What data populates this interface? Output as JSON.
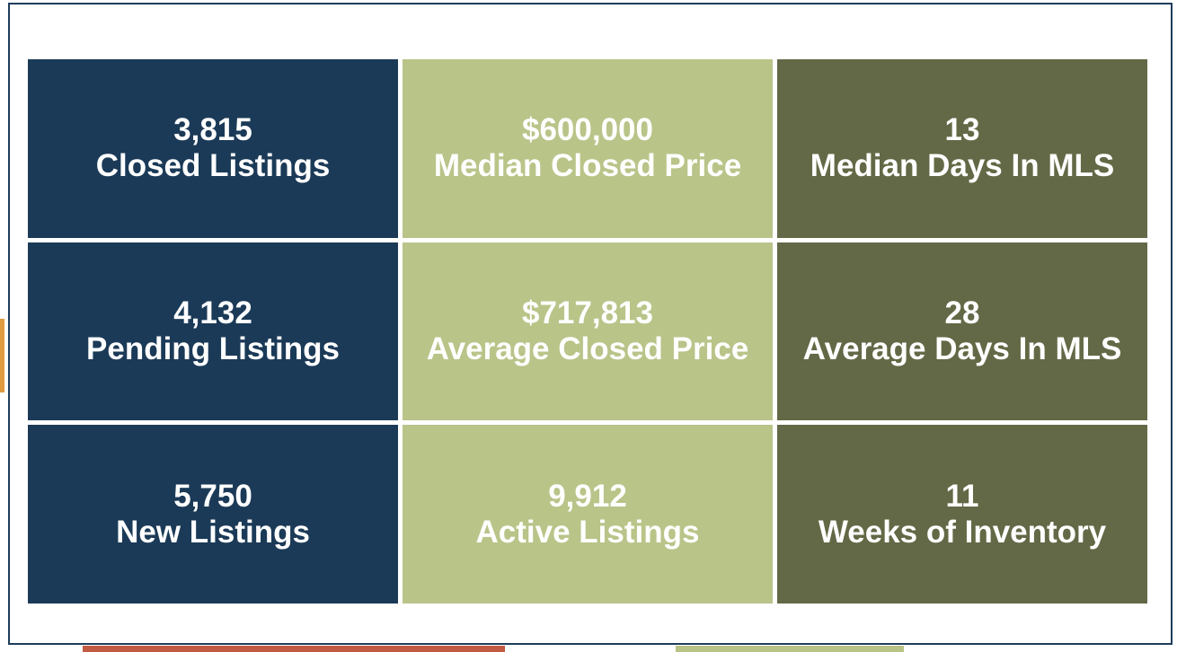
{
  "theme": {
    "navy": "#1b3a57",
    "light_green": "#b9c489",
    "olive": "#636946",
    "frame_border": "#1e3d5b",
    "orange_accent": "#e09b3e",
    "red_accent": "#c35a43",
    "green_accent": "#b7c387",
    "text": "#ffffff",
    "page_background": "#ffffff"
  },
  "metrics": {
    "tiles": [
      {
        "value": "3,815",
        "label": "Closed Listings"
      },
      {
        "value": "$600,000",
        "label": "Median Closed Price"
      },
      {
        "value": "13",
        "label": "Median Days In MLS"
      },
      {
        "value": "4,132",
        "label": "Pending Listings"
      },
      {
        "value": "$717,813",
        "label": "Average Closed Price"
      },
      {
        "value": "28",
        "label": "Average Days In MLS"
      },
      {
        "value": "5,750",
        "label": "New Listings"
      },
      {
        "value": "9,912",
        "label": "Active Listings"
      },
      {
        "value": "11",
        "label": "Weeks of Inventory"
      }
    ]
  },
  "chart_data": {
    "type": "table",
    "columns": [
      "metric",
      "value"
    ],
    "rows": [
      {
        "metric": "Closed Listings",
        "value": 3815,
        "display": "3,815"
      },
      {
        "metric": "Median Closed Price",
        "value": 600000,
        "display": "$600,000"
      },
      {
        "metric": "Median Days In MLS",
        "value": 13,
        "display": "13"
      },
      {
        "metric": "Pending Listings",
        "value": 4132,
        "display": "4,132"
      },
      {
        "metric": "Average Closed Price",
        "value": 717813,
        "display": "$717,813"
      },
      {
        "metric": "Average Days In MLS",
        "value": 28,
        "display": "28"
      },
      {
        "metric": "New Listings",
        "value": 5750,
        "display": "5,750"
      },
      {
        "metric": "Active Listings",
        "value": 9912,
        "display": "9,912"
      },
      {
        "metric": "Weeks of Inventory",
        "value": 11,
        "display": "11"
      }
    ],
    "layout": {
      "grid": "3x3",
      "column_colors": [
        "#1b3a57",
        "#b9c489",
        "#636946"
      ],
      "text_color": "#ffffff"
    }
  }
}
